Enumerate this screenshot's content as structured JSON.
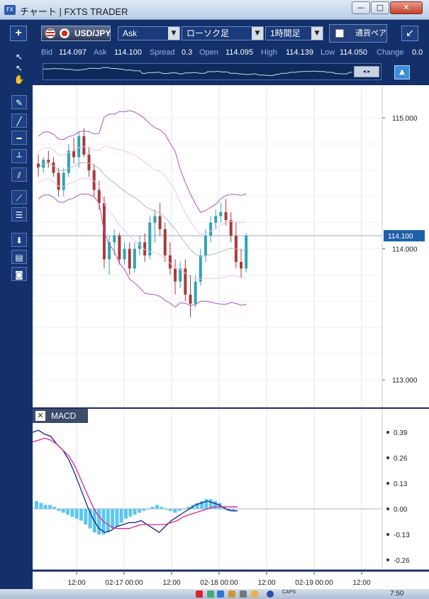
{
  "window": {
    "icon_text": "FX",
    "title": "チャート | FXTS TRADER",
    "minimize": "—",
    "maximize": "□",
    "close": "✕"
  },
  "toolbar": {
    "add_label": "+",
    "symbol": "USD/JPY",
    "price_type": "Ask",
    "chart_type": "ローソク足",
    "period": "1時間足",
    "currency_strength": "通貨ペア",
    "collapse_icon": "↙",
    "dropdown_icon": "▼"
  },
  "quote": {
    "bid_label": "Bid",
    "bid": "114.097",
    "ask_label": "Ask",
    "ask": "114.100",
    "spread_label": "Spread",
    "spread": "0.3",
    "open_label": "Open",
    "open": "114.095",
    "high_label": "High",
    "high": "114.139",
    "low_label": "Low",
    "low": "114.050",
    "change_label": "Change",
    "change": "0.0"
  },
  "navigator": {
    "scroll_icon": "◂ ▸",
    "lock_icon": "▲"
  },
  "tools": [
    {
      "name": "pointer-icon",
      "glyph": "↖"
    },
    {
      "name": "crosshair-pointer-icon",
      "glyph": "↖"
    },
    {
      "name": "hand-icon",
      "glyph": "✋"
    },
    {
      "name": "pin-icon",
      "glyph": "✎"
    },
    {
      "name": "trendline-icon",
      "glyph": "╱"
    },
    {
      "name": "horizontal-line-icon",
      "glyph": "━"
    },
    {
      "name": "horizontal-level-icon",
      "glyph": "┴"
    },
    {
      "name": "channel-icon",
      "glyph": "⫽"
    },
    {
      "name": "fan-icon",
      "glyph": "⟋"
    },
    {
      "name": "fibonacci-icon",
      "glyph": "☰"
    },
    {
      "name": "download-icon",
      "glyph": "⬇"
    },
    {
      "name": "list-icon",
      "glyph": "▤"
    },
    {
      "name": "camera-icon",
      "glyph": "◙"
    }
  ],
  "colors": {
    "up_candle": "#2ea4b4",
    "down_candle": "#a83a3a",
    "bollinger_outer": "#b44fc8",
    "bollinger_inner": "#f0c2f0",
    "moving_average": "#b8b8b8",
    "macd_line": "#1a1e8c",
    "signal_line": "#d9288f",
    "histogram": "#5ac8f0",
    "price_marker": "#1e5fa8"
  },
  "price_axis": {
    "ticks": [
      "115.000",
      "114.000",
      "113.000"
    ],
    "current_price": "114.100"
  },
  "time_axis": {
    "ticks": [
      "12:00",
      "02-17 00:00",
      "12:00",
      "02-18 00:00",
      "12:00",
      "02-19 00:00",
      "12:00"
    ]
  },
  "macd": {
    "label": "MACD",
    "close": "✕",
    "ticks": [
      "0.39",
      "0.26",
      "0.13",
      "0.00",
      "-0.13",
      "-0.26"
    ]
  },
  "taskbar": {
    "caps": "CAPS",
    "time": "7:50"
  },
  "chart_data": [
    {
      "type": "candlestick",
      "title": "",
      "ylim": [
        112.8,
        115.25
      ],
      "ohlc": [
        [
          114.65,
          114.72,
          114.55,
          114.62
        ],
        [
          114.62,
          114.7,
          114.58,
          114.68
        ],
        [
          114.68,
          114.75,
          114.62,
          114.66
        ],
        [
          114.66,
          114.7,
          114.55,
          114.58
        ],
        [
          114.58,
          114.62,
          114.4,
          114.45
        ],
        [
          114.45,
          114.62,
          114.4,
          114.58
        ],
        [
          114.58,
          114.8,
          114.55,
          114.75
        ],
        [
          114.75,
          114.85,
          114.65,
          114.7
        ],
        [
          114.7,
          114.9,
          114.62,
          114.86
        ],
        [
          114.86,
          114.92,
          114.7,
          114.72
        ],
        [
          114.72,
          114.78,
          114.55,
          114.6
        ],
        [
          114.6,
          114.65,
          114.4,
          114.45
        ],
        [
          114.45,
          114.52,
          114.3,
          114.35
        ],
        [
          114.35,
          114.4,
          113.85,
          113.92
        ],
        [
          113.92,
          114.1,
          113.8,
          114.05
        ],
        [
          114.05,
          114.15,
          113.95,
          114.1
        ],
        [
          114.1,
          114.12,
          113.88,
          113.92
        ],
        [
          113.92,
          114.05,
          113.88,
          114.0
        ],
        [
          114.0,
          114.05,
          113.8,
          113.85
        ],
        [
          113.85,
          114.05,
          113.82,
          114.0
        ],
        [
          114.0,
          114.1,
          113.95,
          114.05
        ],
        [
          114.05,
          114.12,
          113.9,
          113.95
        ],
        [
          113.95,
          114.25,
          113.92,
          114.2
        ],
        [
          114.2,
          114.3,
          114.05,
          114.25
        ],
        [
          114.25,
          114.35,
          114.1,
          114.15
        ],
        [
          114.15,
          114.2,
          113.9,
          113.95
        ],
        [
          113.95,
          114.05,
          113.8,
          113.85
        ],
        [
          113.85,
          113.92,
          113.65,
          113.75
        ],
        [
          113.75,
          113.9,
          113.7,
          113.85
        ],
        [
          113.85,
          113.92,
          113.6,
          113.65
        ],
        [
          113.65,
          113.8,
          113.48,
          113.58
        ],
        [
          113.58,
          113.8,
          113.55,
          113.75
        ],
        [
          113.75,
          114.0,
          113.72,
          113.95
        ],
        [
          113.95,
          114.15,
          113.9,
          114.1
        ],
        [
          114.1,
          114.25,
          114.05,
          114.2
        ],
        [
          114.2,
          114.3,
          114.15,
          114.25
        ],
        [
          114.25,
          114.35,
          114.2,
          114.28
        ],
        [
          114.28,
          114.38,
          114.18,
          114.22
        ],
        [
          114.22,
          114.28,
          114.05,
          114.1
        ],
        [
          114.1,
          114.2,
          113.85,
          113.9
        ],
        [
          113.9,
          114.0,
          113.78,
          113.85
        ],
        [
          113.85,
          114.12,
          113.82,
          114.1
        ]
      ]
    },
    {
      "type": "line",
      "title": "MACD",
      "ylim": [
        -0.3,
        0.43
      ],
      "series": [
        {
          "name": "MACD",
          "values": [
            0.39,
            0.4,
            0.38,
            0.37,
            0.33,
            0.3,
            0.25,
            0.18,
            0.1,
            0.02,
            -0.05,
            -0.1,
            -0.12,
            -0.11,
            -0.09,
            -0.08,
            -0.07,
            -0.07,
            -0.06,
            -0.08,
            -0.1,
            -0.12,
            -0.09,
            -0.06,
            -0.04,
            -0.02,
            0.0,
            0.02,
            0.03,
            0.04,
            0.03,
            0.02,
            0.0,
            -0.01,
            -0.01
          ]
        },
        {
          "name": "Signal",
          "values": [
            0.34,
            0.35,
            0.36,
            0.35,
            0.33,
            0.3,
            0.27,
            0.22,
            0.15,
            0.08,
            0.01,
            -0.04,
            -0.07,
            -0.09,
            -0.1,
            -0.1,
            -0.1,
            -0.09,
            -0.08,
            -0.08,
            -0.08,
            -0.08,
            -0.08,
            -0.07,
            -0.06,
            -0.04,
            -0.03,
            -0.02,
            -0.01,
            0.0,
            0.01,
            0.01,
            0.01,
            0.01,
            0.01
          ]
        }
      ],
      "histogram": [
        0.04,
        0.03,
        0.02,
        0.02,
        0.01,
        -0.01,
        -0.02,
        -0.03,
        -0.04,
        -0.05,
        -0.06,
        -0.08,
        -0.1,
        -0.12,
        -0.13,
        -0.13,
        -0.12,
        -0.1,
        -0.09,
        -0.07,
        -0.05,
        -0.04,
        -0.03,
        -0.02,
        -0.01,
        0.0,
        0.01,
        0.02,
        0.01,
        0.0,
        -0.01,
        -0.02,
        -0.01,
        0.0,
        0.01,
        0.02,
        0.03,
        0.04,
        0.05,
        0.05,
        0.04,
        0.03,
        0.01,
        -0.01,
        -0.01
      ]
    }
  ]
}
